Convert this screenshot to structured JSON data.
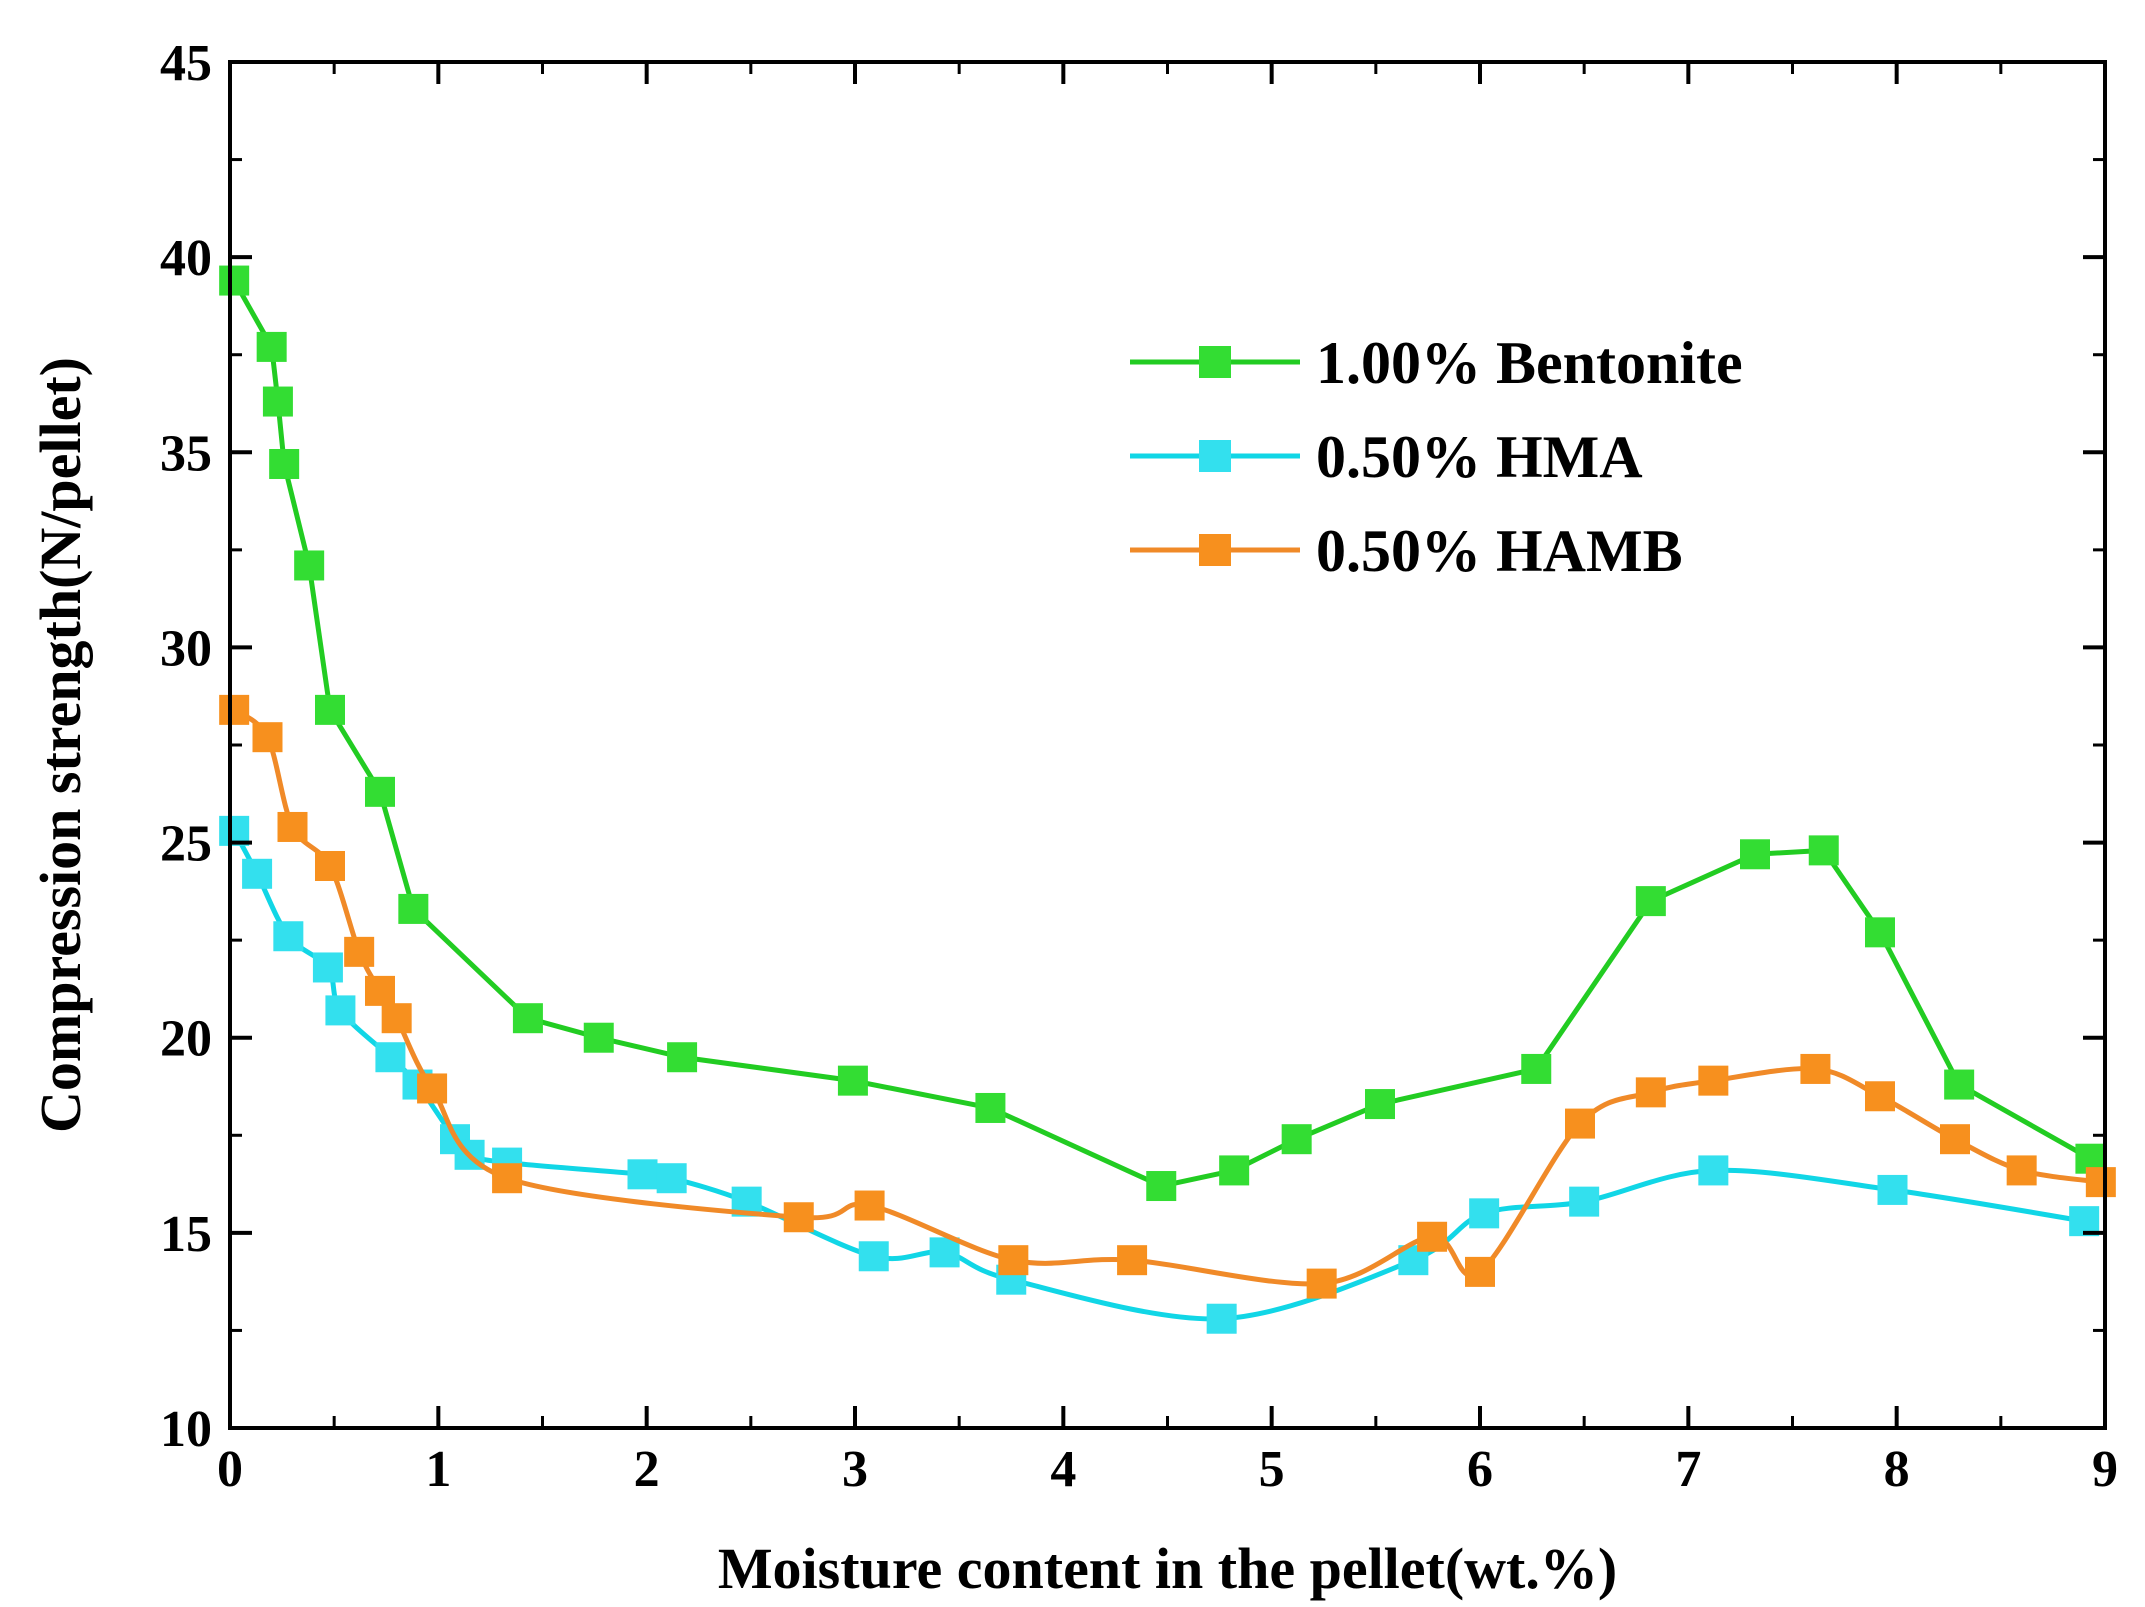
{
  "chart_data": {
    "type": "line",
    "title": "",
    "xlabel": "Moisture content in the pellet(wt.%)",
    "ylabel": "Compression strength(N/pellet)",
    "xlim": [
      0,
      9
    ],
    "ylim": [
      10,
      45
    ],
    "x_ticks": [
      0,
      1,
      2,
      3,
      4,
      5,
      6,
      7,
      8,
      9
    ],
    "y_ticks": [
      10,
      15,
      20,
      25,
      30,
      35,
      40,
      45
    ],
    "x_tick_labels": [
      "0",
      "1",
      "2",
      "3",
      "4",
      "5",
      "6",
      "7",
      "8",
      "9"
    ],
    "y_tick_labels": [
      "10",
      "15",
      "20",
      "25",
      "30",
      "35",
      "40",
      "45"
    ],
    "legend_position": "top-right",
    "series": [
      {
        "name": "1.00% Bentonite",
        "color": "#22cc22",
        "marker_color": "#33dd33",
        "line_style": "straight",
        "points": [
          [
            0.02,
            39.4
          ],
          [
            0.2,
            37.7
          ],
          [
            0.23,
            36.3
          ],
          [
            0.26,
            34.7
          ],
          [
            0.38,
            32.1
          ],
          [
            0.48,
            28.4
          ],
          [
            0.72,
            26.3
          ],
          [
            0.88,
            23.3
          ],
          [
            1.43,
            20.5
          ],
          [
            1.77,
            20.0
          ],
          [
            2.17,
            19.5
          ],
          [
            2.99,
            18.9
          ],
          [
            3.65,
            18.2
          ],
          [
            4.47,
            16.2
          ],
          [
            4.82,
            16.6
          ],
          [
            5.12,
            17.4
          ],
          [
            5.52,
            18.3
          ],
          [
            6.27,
            19.2
          ],
          [
            6.82,
            23.5
          ],
          [
            7.32,
            24.7
          ],
          [
            7.65,
            24.8
          ],
          [
            7.92,
            22.7
          ],
          [
            8.3,
            18.8
          ],
          [
            8.93,
            16.9
          ]
        ]
      },
      {
        "name": "0.50% HMA",
        "color": "#11d6e6",
        "marker_color": "#33e0ee",
        "line_style": "smooth",
        "points": [
          [
            0.02,
            25.3
          ],
          [
            0.13,
            24.2
          ],
          [
            0.28,
            22.6
          ],
          [
            0.47,
            21.8
          ],
          [
            0.53,
            20.7
          ],
          [
            0.77,
            19.5
          ],
          [
            0.9,
            18.8
          ],
          [
            1.08,
            17.4
          ],
          [
            1.15,
            17.0
          ],
          [
            1.33,
            16.8
          ],
          [
            1.98,
            16.5
          ],
          [
            2.12,
            16.4
          ],
          [
            2.48,
            15.8
          ],
          [
            3.09,
            14.4
          ],
          [
            3.43,
            14.5
          ],
          [
            3.75,
            13.8
          ],
          [
            4.76,
            12.8
          ],
          [
            5.68,
            14.3
          ],
          [
            6.02,
            15.5
          ],
          [
            6.5,
            15.8
          ],
          [
            7.12,
            16.6
          ],
          [
            7.98,
            16.1
          ],
          [
            8.9,
            15.3
          ]
        ]
      },
      {
        "name": "0.50% HAMB",
        "color": "#f08a28",
        "marker_color": "#f7901e",
        "line_style": "smooth",
        "points": [
          [
            0.02,
            28.4
          ],
          [
            0.18,
            27.7
          ],
          [
            0.3,
            25.4
          ],
          [
            0.48,
            24.4
          ],
          [
            0.62,
            22.2
          ],
          [
            0.72,
            21.2
          ],
          [
            0.8,
            20.5
          ],
          [
            0.97,
            18.7
          ],
          [
            1.33,
            16.4
          ],
          [
            2.73,
            15.4
          ],
          [
            3.07,
            15.7
          ],
          [
            3.76,
            14.3
          ],
          [
            4.33,
            14.3
          ],
          [
            5.24,
            13.7
          ],
          [
            5.77,
            14.9
          ],
          [
            6.0,
            14.0
          ],
          [
            6.48,
            17.8
          ],
          [
            6.82,
            18.6
          ],
          [
            7.12,
            18.9
          ],
          [
            7.61,
            19.2
          ],
          [
            7.92,
            18.5
          ],
          [
            8.28,
            17.4
          ],
          [
            8.6,
            16.6
          ],
          [
            8.98,
            16.3
          ]
        ]
      }
    ]
  }
}
